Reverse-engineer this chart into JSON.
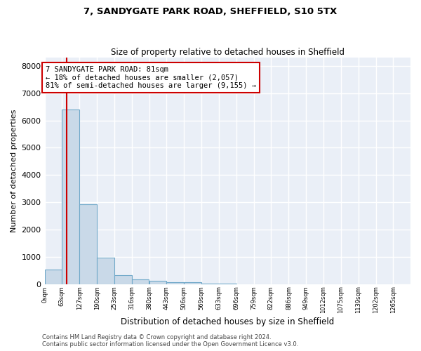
{
  "title_line1": "7, SANDYGATE PARK ROAD, SHEFFIELD, S10 5TX",
  "title_line2": "Size of property relative to detached houses in Sheffield",
  "xlabel": "Distribution of detached houses by size in Sheffield",
  "ylabel": "Number of detached properties",
  "bin_labels": [
    "0sqm",
    "63sqm",
    "127sqm",
    "190sqm",
    "253sqm",
    "316sqm",
    "380sqm",
    "443sqm",
    "506sqm",
    "569sqm",
    "633sqm",
    "696sqm",
    "759sqm",
    "822sqm",
    "886sqm",
    "949sqm",
    "1012sqm",
    "1075sqm",
    "1139sqm",
    "1202sqm",
    "1265sqm"
  ],
  "bin_edges": [
    0,
    63,
    127,
    190,
    253,
    316,
    380,
    443,
    506,
    569,
    633,
    696,
    759,
    822,
    886,
    949,
    1012,
    1075,
    1139,
    1202,
    1265
  ],
  "bar_heights": [
    530,
    6400,
    2930,
    970,
    330,
    160,
    110,
    70,
    70,
    10,
    5,
    2,
    1,
    1,
    1,
    0,
    0,
    0,
    0,
    0
  ],
  "bar_color": "#c9d9e8",
  "bar_edgecolor": "#6fa8c9",
  "property_size": 81,
  "property_line_color": "#cc0000",
  "annotation_line1": "7 SANDYGATE PARK ROAD: 81sqm",
  "annotation_line2": "← 18% of detached houses are smaller (2,057)",
  "annotation_line3": "81% of semi-detached houses are larger (9,155) →",
  "annotation_box_color": "#cc0000",
  "ylim": [
    0,
    8300
  ],
  "yticks": [
    0,
    1000,
    2000,
    3000,
    4000,
    5000,
    6000,
    7000,
    8000
  ],
  "background_color": "#eaeff7",
  "grid_color": "#ffffff",
  "footer_line1": "Contains HM Land Registry data © Crown copyright and database right 2024.",
  "footer_line2": "Contains public sector information licensed under the Open Government Licence v3.0."
}
